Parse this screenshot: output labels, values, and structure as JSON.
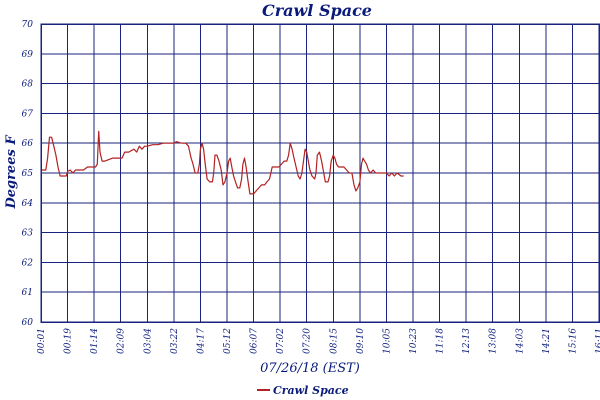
{
  "chart_data": {
    "type": "line",
    "title": "Crawl Space",
    "xlabel": "07/26/18 (EST)",
    "ylabel": "Degrees F",
    "ylim": [
      60,
      70
    ],
    "yticks": [
      60,
      61,
      62,
      63,
      64,
      65,
      66,
      67,
      68,
      69,
      70
    ],
    "xticks": [
      "00:01",
      "00:19",
      "01:14",
      "02:09",
      "03:04",
      "03:22",
      "04:17",
      "05:12",
      "06:07",
      "07:02",
      "07:20",
      "08:15",
      "09:10",
      "10:05",
      "10:23",
      "11:18",
      "12:13",
      "13:08",
      "14:03",
      "14:21",
      "15:16",
      "16:11"
    ],
    "grid": true,
    "legend_position": "bottom-left",
    "series": [
      {
        "name": "Crawl Space",
        "color": "#b22222",
        "points": [
          [
            0.0,
            65.1
          ],
          [
            0.18,
            65.1
          ],
          [
            0.25,
            65.5
          ],
          [
            0.32,
            66.2
          ],
          [
            0.4,
            66.2
          ],
          [
            0.48,
            65.9
          ],
          [
            0.56,
            65.6
          ],
          [
            0.64,
            65.2
          ],
          [
            0.72,
            64.9
          ],
          [
            0.85,
            64.9
          ],
          [
            0.95,
            64.9
          ],
          [
            1.0,
            65.05
          ],
          [
            1.1,
            65.1
          ],
          [
            1.2,
            65.0
          ],
          [
            1.3,
            65.1
          ],
          [
            1.45,
            65.1
          ],
          [
            1.6,
            65.1
          ],
          [
            1.75,
            65.2
          ],
          [
            1.9,
            65.2
          ],
          [
            2.05,
            65.2
          ],
          [
            2.12,
            65.3
          ],
          [
            2.17,
            66.4
          ],
          [
            2.22,
            65.7
          ],
          [
            2.3,
            65.4
          ],
          [
            2.4,
            65.4
          ],
          [
            2.55,
            65.45
          ],
          [
            2.7,
            65.5
          ],
          [
            2.9,
            65.5
          ],
          [
            3.05,
            65.5
          ],
          [
            3.15,
            65.7
          ],
          [
            3.3,
            65.7
          ],
          [
            3.4,
            65.75
          ],
          [
            3.5,
            65.8
          ],
          [
            3.6,
            65.7
          ],
          [
            3.7,
            65.9
          ],
          [
            3.8,
            65.8
          ],
          [
            3.9,
            65.9
          ],
          [
            4.0,
            65.9
          ],
          [
            4.2,
            65.95
          ],
          [
            4.4,
            65.95
          ],
          [
            4.6,
            66.0
          ],
          [
            4.8,
            66.0
          ],
          [
            5.0,
            66.0
          ],
          [
            5.1,
            66.05
          ],
          [
            5.3,
            66.0
          ],
          [
            5.45,
            66.0
          ],
          [
            5.55,
            65.9
          ],
          [
            5.65,
            65.5
          ],
          [
            5.72,
            65.3
          ],
          [
            5.8,
            65.0
          ],
          [
            5.9,
            65.0
          ],
          [
            5.96,
            65.3
          ],
          [
            6.0,
            65.8
          ],
          [
            6.06,
            66.0
          ],
          [
            6.12,
            65.8
          ],
          [
            6.18,
            65.3
          ],
          [
            6.25,
            64.8
          ],
          [
            6.35,
            64.7
          ],
          [
            6.45,
            64.7
          ],
          [
            6.5,
            65.0
          ],
          [
            6.55,
            65.6
          ],
          [
            6.62,
            65.6
          ],
          [
            6.7,
            65.4
          ],
          [
            6.78,
            65.1
          ],
          [
            6.85,
            64.6
          ],
          [
            6.92,
            64.7
          ],
          [
            7.0,
            65.0
          ],
          [
            7.06,
            65.4
          ],
          [
            7.12,
            65.5
          ],
          [
            7.18,
            65.2
          ],
          [
            7.25,
            64.9
          ],
          [
            7.32,
            64.7
          ],
          [
            7.4,
            64.5
          ],
          [
            7.48,
            64.5
          ],
          [
            7.55,
            64.8
          ],
          [
            7.6,
            65.3
          ],
          [
            7.66,
            65.5
          ],
          [
            7.72,
            65.2
          ],
          [
            7.78,
            64.8
          ],
          [
            7.86,
            64.3
          ],
          [
            8.0,
            64.3
          ],
          [
            8.1,
            64.4
          ],
          [
            8.2,
            64.5
          ],
          [
            8.3,
            64.6
          ],
          [
            8.42,
            64.6
          ],
          [
            8.5,
            64.7
          ],
          [
            8.6,
            64.8
          ],
          [
            8.7,
            65.2
          ],
          [
            8.82,
            65.2
          ],
          [
            8.95,
            65.2
          ],
          [
            9.05,
            65.3
          ],
          [
            9.15,
            65.4
          ],
          [
            9.25,
            65.4
          ],
          [
            9.32,
            65.6
          ],
          [
            9.38,
            66.0
          ],
          [
            9.45,
            65.8
          ],
          [
            9.52,
            65.5
          ],
          [
            9.6,
            65.2
          ],
          [
            9.68,
            64.9
          ],
          [
            9.75,
            64.8
          ],
          [
            9.82,
            65.0
          ],
          [
            9.88,
            65.4
          ],
          [
            9.94,
            65.8
          ],
          [
            10.0,
            65.7
          ],
          [
            10.06,
            65.4
          ],
          [
            10.12,
            65.1
          ],
          [
            10.2,
            64.9
          ],
          [
            10.3,
            64.8
          ],
          [
            10.35,
            65.0
          ],
          [
            10.4,
            65.6
          ],
          [
            10.48,
            65.7
          ],
          [
            10.56,
            65.4
          ],
          [
            10.62,
            65.1
          ],
          [
            10.7,
            64.7
          ],
          [
            10.8,
            64.7
          ],
          [
            10.86,
            64.9
          ],
          [
            10.92,
            65.4
          ],
          [
            11.0,
            65.6
          ],
          [
            11.06,
            65.5
          ],
          [
            11.12,
            65.3
          ],
          [
            11.2,
            65.2
          ],
          [
            11.3,
            65.2
          ],
          [
            11.4,
            65.2
          ],
          [
            11.5,
            65.1
          ],
          [
            11.6,
            65.0
          ],
          [
            11.7,
            65.0
          ],
          [
            11.78,
            64.6
          ],
          [
            11.85,
            64.4
          ],
          [
            11.92,
            64.5
          ],
          [
            12.0,
            64.7
          ],
          [
            12.06,
            65.3
          ],
          [
            12.12,
            65.5
          ],
          [
            12.18,
            65.4
          ],
          [
            12.25,
            65.3
          ],
          [
            12.32,
            65.1
          ],
          [
            12.4,
            65.0
          ],
          [
            12.5,
            65.1
          ],
          [
            12.6,
            65.0
          ],
          [
            12.7,
            65.0
          ],
          [
            12.85,
            65.0
          ],
          [
            13.0,
            65.0
          ],
          [
            13.1,
            64.9
          ],
          [
            13.2,
            65.0
          ],
          [
            13.3,
            64.9
          ],
          [
            13.4,
            65.0
          ],
          [
            13.55,
            64.9
          ],
          [
            13.65,
            64.9
          ]
        ]
      }
    ]
  }
}
